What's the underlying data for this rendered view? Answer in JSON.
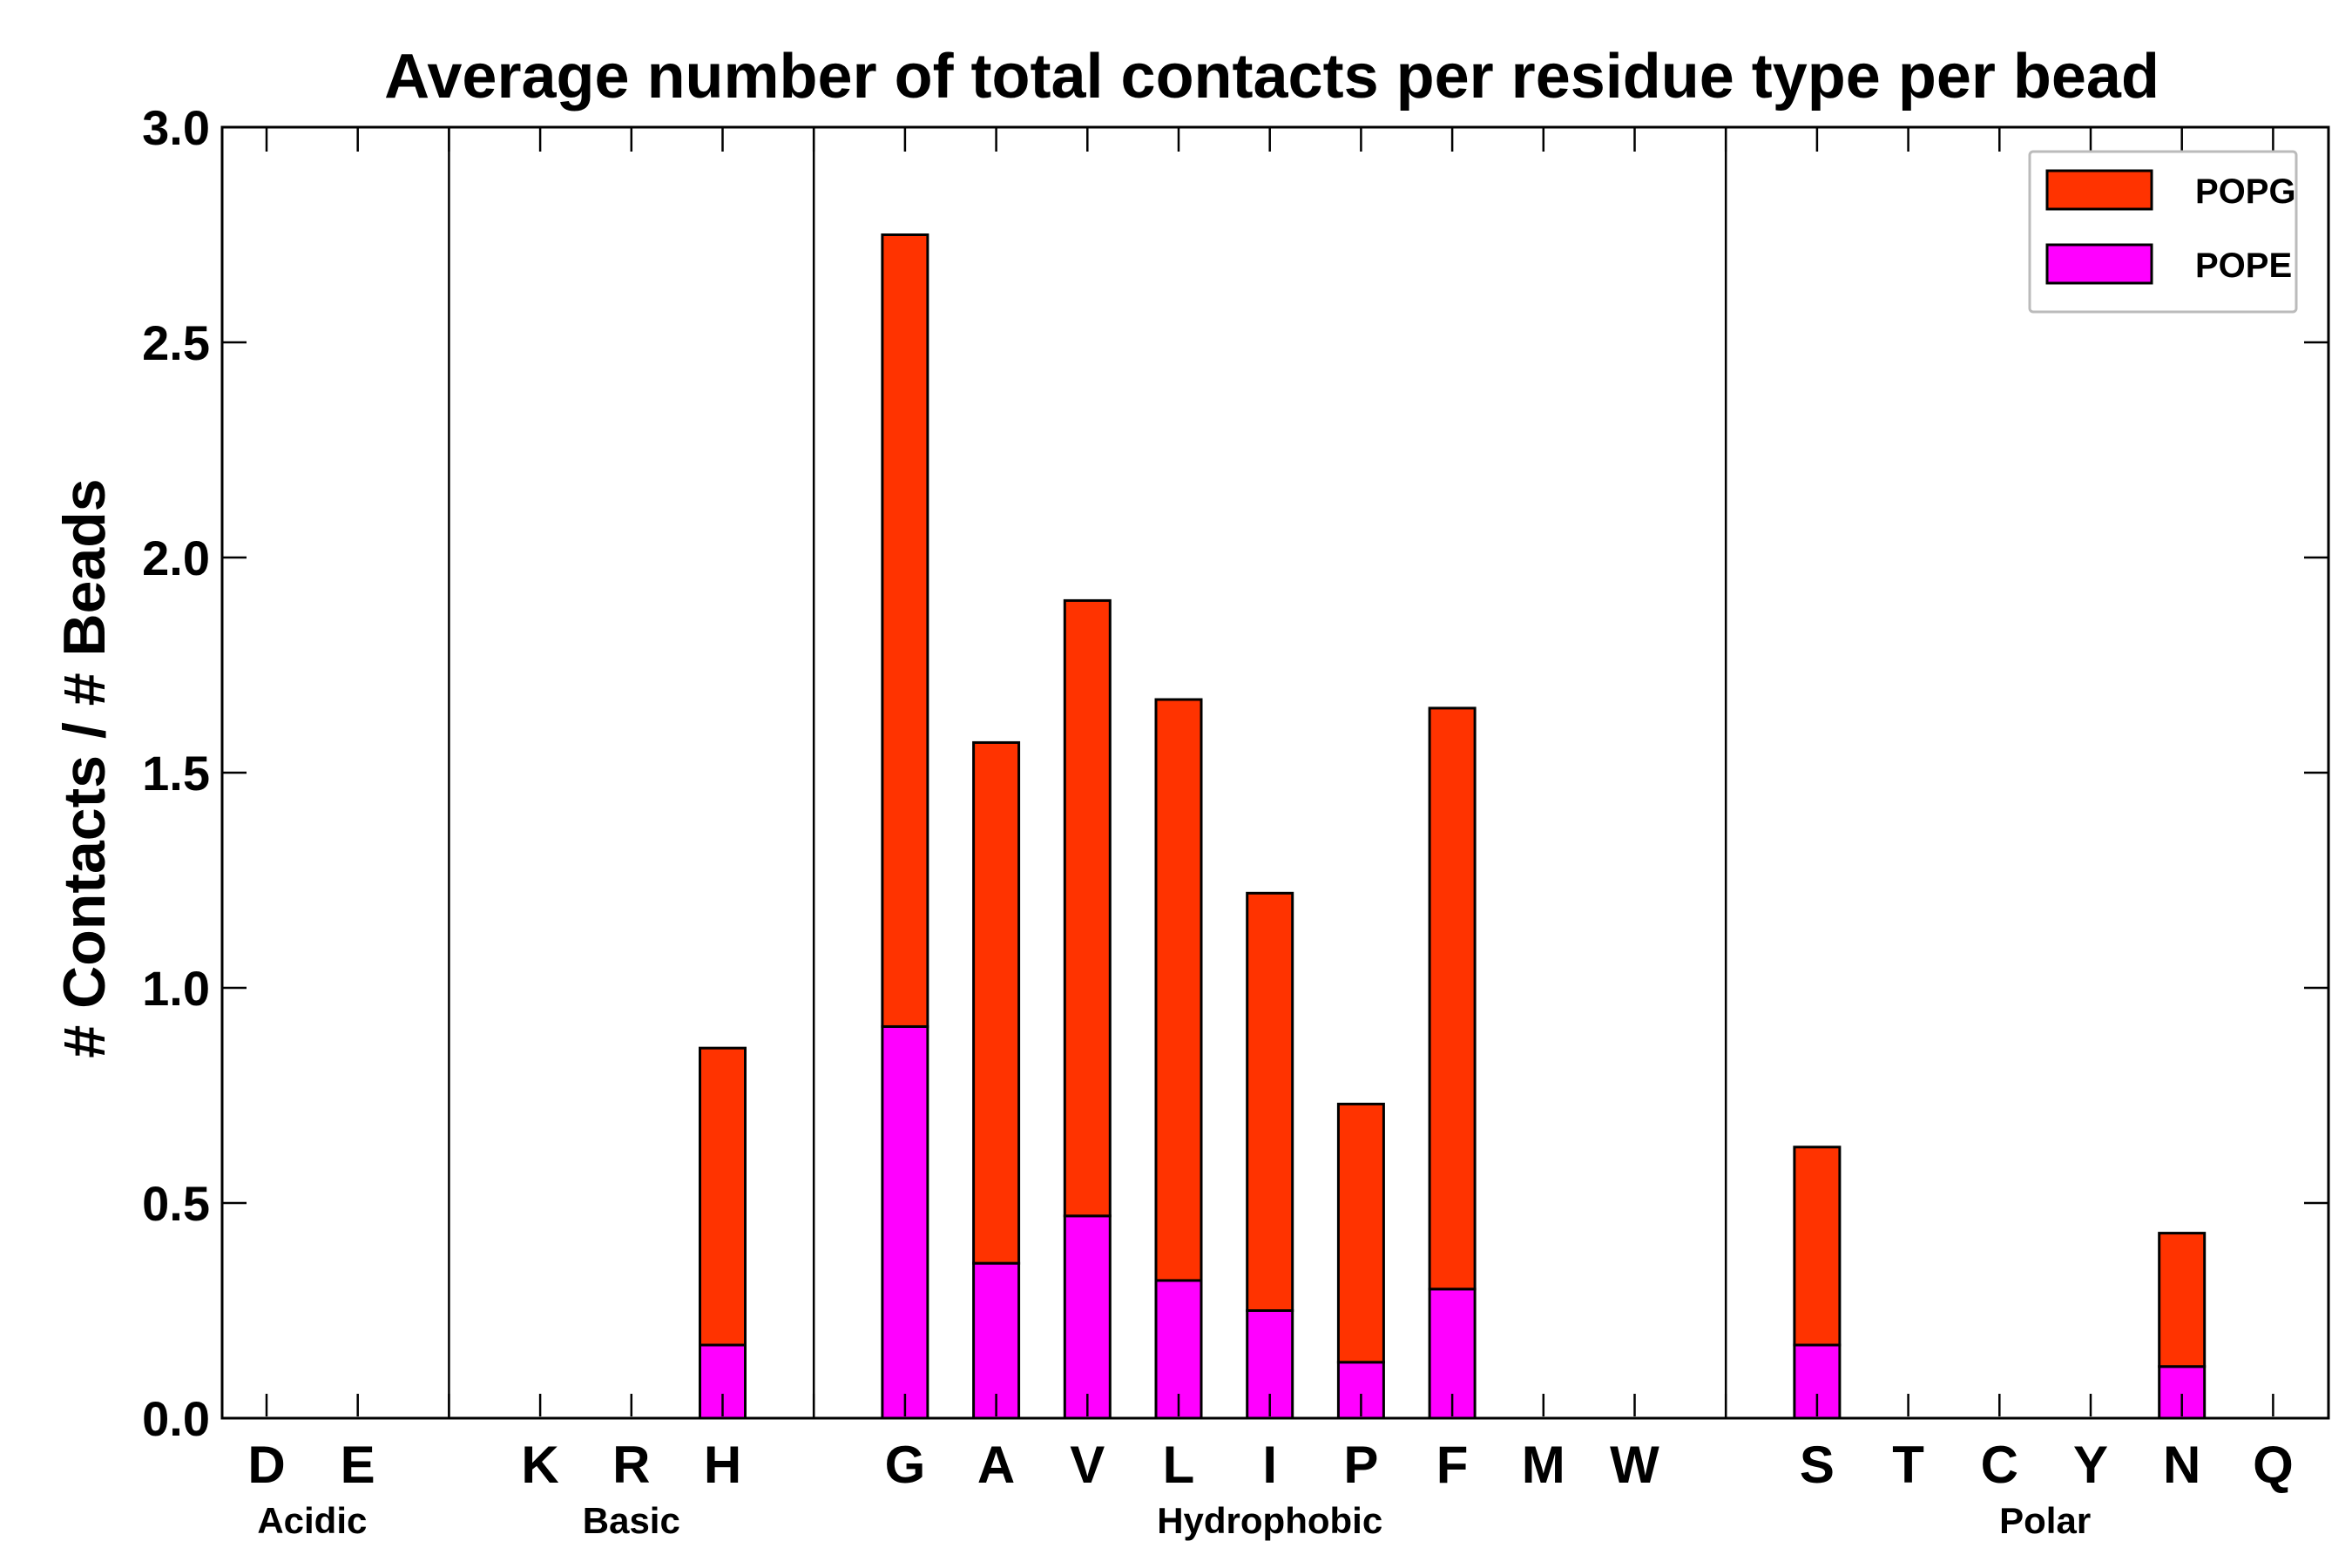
{
  "chart_data": {
    "type": "bar",
    "stacked": true,
    "title": "Average number of total contacts per residue type per bead",
    "xlabel": "",
    "ylabel": "# Contacts / # Beads",
    "ylim": [
      0,
      3.0
    ],
    "yticks": [
      "0.0",
      "0.5",
      "1.0",
      "1.5",
      "2.0",
      "2.5",
      "3.0"
    ],
    "legend_position": "top-right",
    "categories": [
      "D",
      "E",
      "",
      "K",
      "R",
      "H",
      "",
      "G",
      "A",
      "V",
      "L",
      "I",
      "P",
      "F",
      "M",
      "W",
      "",
      "S",
      "T",
      "C",
      "Y",
      "N",
      "Q"
    ],
    "groups": [
      {
        "name": "Acidic",
        "from": 0,
        "to": 1
      },
      {
        "name": "Basic",
        "from": 3,
        "to": 5
      },
      {
        "name": "Hydrophobic",
        "from": 7,
        "to": 15
      },
      {
        "name": "Polar",
        "from": 17,
        "to": 22
      }
    ],
    "separators_after_index": [
      2,
      6,
      16
    ],
    "series": [
      {
        "name": "POPE",
        "color": "#ff00ff",
        "values": [
          0,
          0,
          0,
          0,
          0,
          0.17,
          0,
          0.91,
          0.36,
          0.47,
          0.32,
          0.25,
          0.13,
          0.3,
          0,
          0,
          0,
          0.17,
          0,
          0,
          0,
          0.12,
          0
        ]
      },
      {
        "name": "POPG",
        "color": "#ff3300",
        "values": [
          0,
          0,
          0,
          0,
          0,
          0.69,
          0,
          1.84,
          1.21,
          1.43,
          1.35,
          0.97,
          0.6,
          1.35,
          0,
          0,
          0,
          0.46,
          0,
          0,
          0,
          0.31,
          0
        ]
      }
    ],
    "legend": [
      {
        "label": "POPG",
        "color": "#ff3300"
      },
      {
        "label": "POPE",
        "color": "#ff00ff"
      }
    ]
  }
}
